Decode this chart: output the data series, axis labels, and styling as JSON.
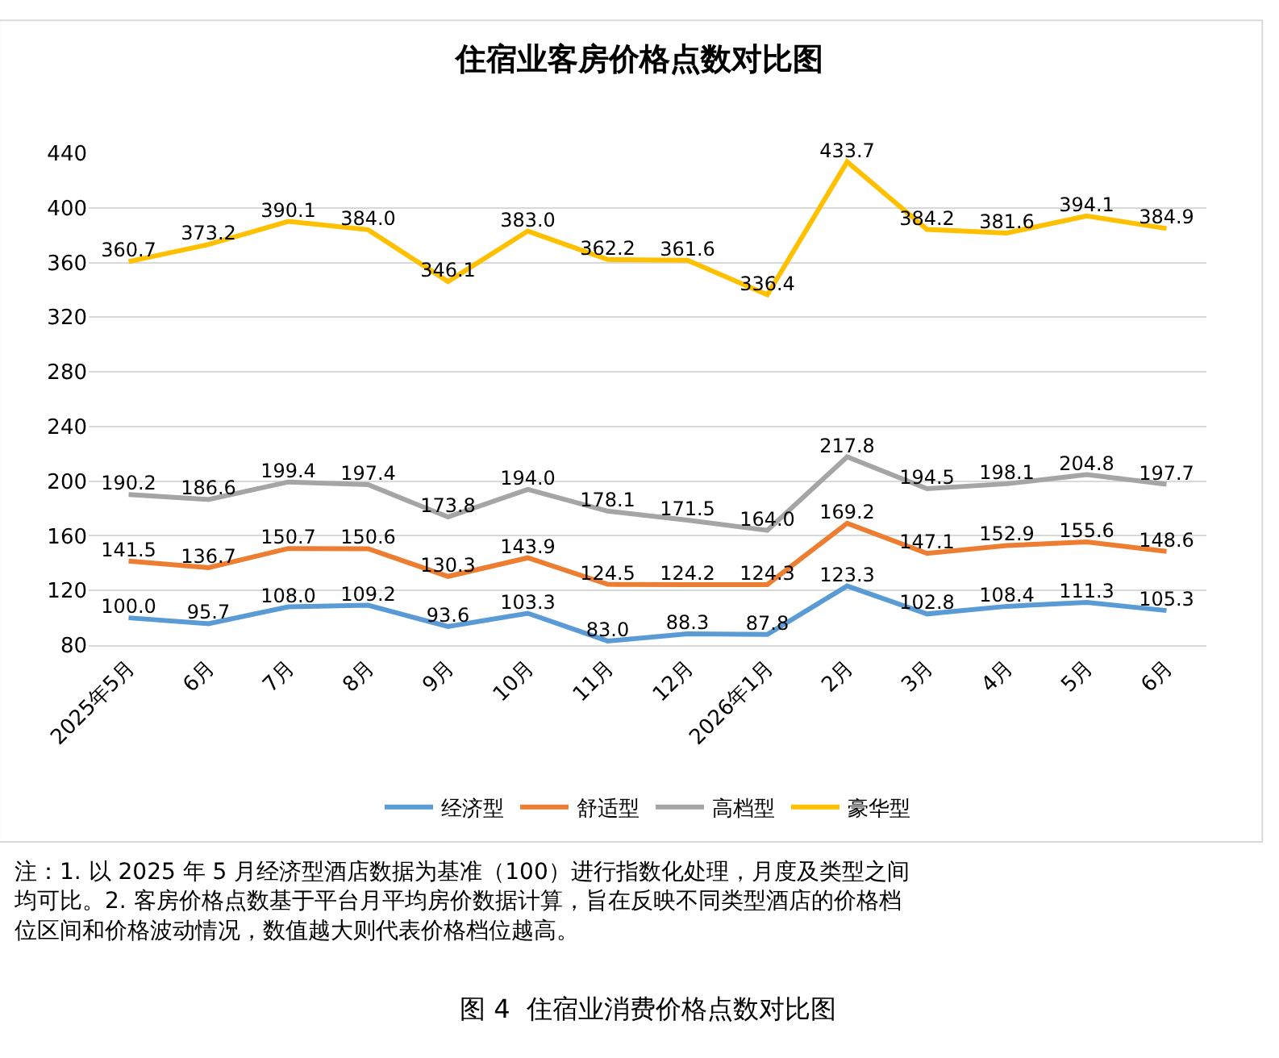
{
  "chart_data": {
    "type": "line",
    "title": "住宿业客房价格点数对比图",
    "categories": [
      "2025年5月",
      "6月",
      "7月",
      "8月",
      "9月",
      "10月",
      "11月",
      "12月",
      "2026年1月",
      "2月",
      "3月",
      "4月",
      "5月",
      "6月"
    ],
    "series": [
      {
        "name": "经济型",
        "color": "#5b9bd5",
        "values": [
          100.0,
          95.7,
          108.0,
          109.2,
          93.6,
          103.3,
          83.0,
          88.3,
          87.8,
          123.3,
          102.8,
          108.4,
          111.3,
          105.3
        ],
        "value_labels": [
          "100.0",
          "95.7",
          "108.0",
          "109.2",
          "93.6",
          "103.3",
          "83.0",
          "88.3",
          "87.8",
          "123.3",
          "102.8",
          "108.4",
          "111.3",
          "105.3"
        ]
      },
      {
        "name": "舒适型",
        "color": "#ed7d31",
        "values": [
          141.5,
          136.7,
          150.7,
          150.6,
          130.3,
          143.9,
          124.5,
          124.2,
          124.3,
          169.2,
          147.1,
          152.9,
          155.6,
          148.6
        ],
        "value_labels": [
          "141.5",
          "136.7",
          "150.7",
          "150.6",
          "130.3",
          "143.9",
          "124.5",
          "124.2",
          "124.3",
          "169.2",
          "147.1",
          "152.9",
          "155.6",
          "148.6"
        ]
      },
      {
        "name": "高档型",
        "color": "#a5a5a5",
        "values": [
          190.2,
          186.6,
          199.4,
          197.4,
          173.8,
          194.0,
          178.1,
          171.5,
          164.0,
          217.8,
          194.5,
          198.1,
          204.8,
          197.7
        ],
        "value_labels": [
          "190.2",
          "186.6",
          "199.4",
          "197.4",
          "173.8",
          "194.0",
          "178.1",
          "171.5",
          "164.0",
          "217.8",
          "194.5",
          "198.1",
          "204.8",
          "197.7"
        ]
      },
      {
        "name": "豪华型",
        "color": "#ffc000",
        "values": [
          360.7,
          373.2,
          390.1,
          384.0,
          346.1,
          383.0,
          362.2,
          361.6,
          336.4,
          433.7,
          384.2,
          381.6,
          394.1,
          384.9
        ],
        "value_labels": [
          "360.7",
          "373.2",
          "390.1",
          "384.0",
          "346.1",
          "383.0",
          "362.2",
          "361.6",
          "336.4",
          "433.7",
          "384.2",
          "381.6",
          "394.1",
          "384.9"
        ]
      }
    ],
    "ylim": [
      80,
      440
    ],
    "yticks": [
      80,
      120,
      160,
      200,
      240,
      280,
      320,
      360,
      400,
      440
    ],
    "grid": "y",
    "legend": "bottom",
    "marker": "none",
    "line_style": "solid",
    "annotations": [
      "注：1. 以 2025 年 5 月经济型酒店数据为基准（100）进行指数化处理，月度及类型之间均可比。2. 客房价格点数基于平台月平均房价数据计算，旨在反映不同类型酒店的价格档位区间和价格波动情况，数值越大则代表价格档位越高。",
      "图 4  住宿业消费价格点数对比图"
    ]
  }
}
